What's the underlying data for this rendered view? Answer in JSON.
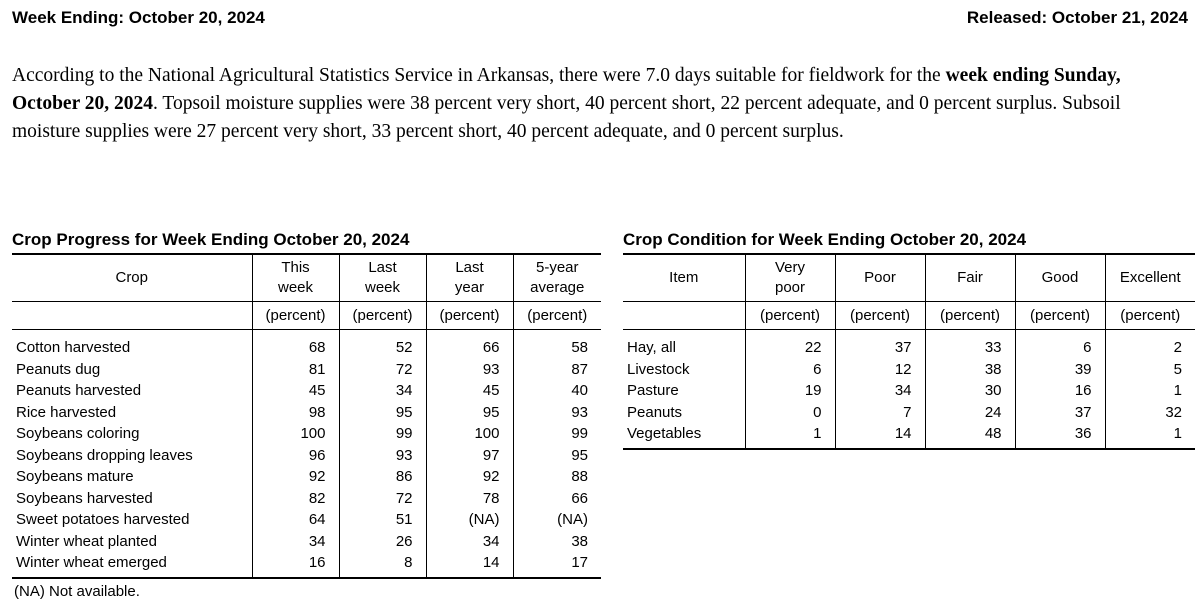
{
  "header": {
    "week_ending": "Week Ending: October 20, 2024",
    "released": "Released: October 21, 2024"
  },
  "intro": {
    "part1": "According to the National Agricultural Statistics Service in Arkansas, there were 7.0 days suitable for fieldwork for the ",
    "bold": "week ending Sunday, October 20, 2024",
    "part2": ". Topsoil moisture supplies were 38 percent very short, 40 percent short, 22 percent adequate, and 0 percent surplus. Subsoil moisture supplies were 27 percent very short, 33 percent short, 40 percent adequate, and 0 percent surplus."
  },
  "progress_table": {
    "title": "Crop Progress for Week Ending October 20, 2024",
    "columns": [
      "Crop",
      "This\nweek",
      "Last\nweek",
      "Last\nyear",
      "5-year\naverage"
    ],
    "units": [
      "",
      "(percent)",
      "(percent)",
      "(percent)",
      "(percent)"
    ],
    "rows": [
      [
        "Cotton harvested",
        68,
        52,
        66,
        58
      ],
      [
        "Peanuts dug",
        81,
        72,
        93,
        87
      ],
      [
        "Peanuts harvested",
        45,
        34,
        45,
        40
      ],
      [
        "Rice harvested",
        98,
        95,
        95,
        93
      ],
      [
        "Soybeans coloring",
        100,
        99,
        100,
        99
      ],
      [
        "Soybeans dropping leaves",
        96,
        93,
        97,
        95
      ],
      [
        "Soybeans mature",
        92,
        86,
        92,
        88
      ],
      [
        "Soybeans harvested",
        82,
        72,
        78,
        66
      ],
      [
        "Sweet potatoes harvested",
        64,
        51,
        "(NA)",
        "(NA)"
      ],
      [
        "Winter wheat planted",
        34,
        26,
        34,
        38
      ],
      [
        "Winter wheat emerged",
        16,
        8,
        14,
        17
      ]
    ],
    "footnote": "(NA) Not available."
  },
  "condition_table": {
    "title": "Crop Condition for Week Ending October 20, 2024",
    "columns": [
      "Item",
      "Very\npoor",
      "Poor",
      "Fair",
      "Good",
      "Excellent"
    ],
    "units": [
      "",
      "(percent)",
      "(percent)",
      "(percent)",
      "(percent)",
      "(percent)"
    ],
    "rows": [
      [
        "Hay, all",
        22,
        37,
        33,
        6,
        2
      ],
      [
        "Livestock",
        6,
        12,
        38,
        39,
        5
      ],
      [
        "Pasture",
        19,
        34,
        30,
        16,
        1
      ],
      [
        "Peanuts",
        0,
        7,
        24,
        37,
        32
      ],
      [
        "Vegetables",
        1,
        14,
        48,
        36,
        1
      ]
    ]
  }
}
